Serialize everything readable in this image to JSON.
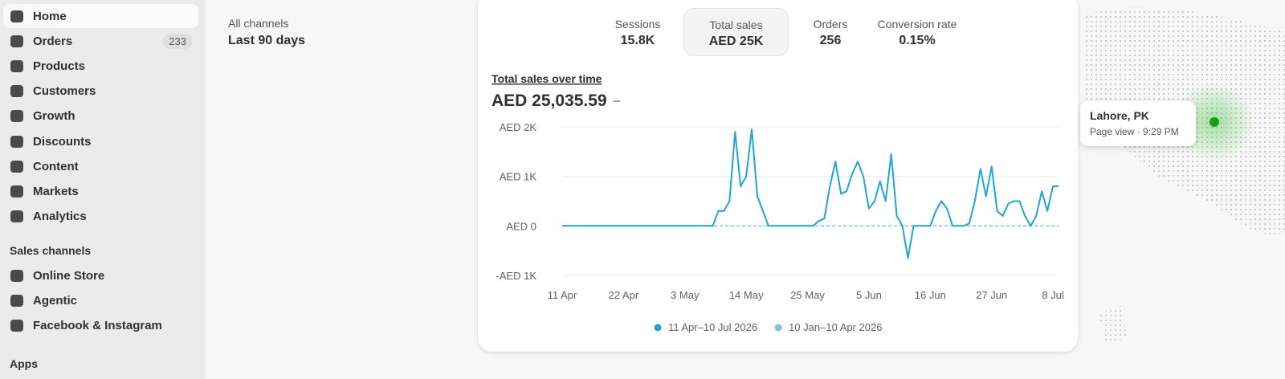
{
  "sidebar": {
    "nav": [
      {
        "label": "Home"
      },
      {
        "label": "Orders",
        "badge": "233"
      },
      {
        "label": "Products"
      },
      {
        "label": "Customers"
      },
      {
        "label": "Growth"
      },
      {
        "label": "Discounts"
      },
      {
        "label": "Content"
      },
      {
        "label": "Markets"
      },
      {
        "label": "Analytics"
      }
    ],
    "sales_channels_heading": "Sales channels",
    "channels": [
      "Online Store",
      "Agentic",
      "Facebook & Instagram"
    ],
    "apps_heading": "Apps"
  },
  "header": {
    "channel": "All channels",
    "range": "Last 90 days"
  },
  "metrics": [
    {
      "label": "Sessions",
      "value": "15.8K"
    },
    {
      "label": "Total sales",
      "value": "AED 25K"
    },
    {
      "label": "Orders",
      "value": "256"
    },
    {
      "label": "Conversion rate",
      "value": "0.15%"
    }
  ],
  "chart_data": {
    "type": "line",
    "title": "Total sales over time",
    "total": "AED 25,035.59",
    "total_change": "–",
    "categories": [
      "11 Apr",
      null,
      null,
      null,
      null,
      null,
      null,
      null,
      null,
      null,
      null,
      "22 Apr",
      null,
      null,
      null,
      null,
      null,
      null,
      null,
      null,
      null,
      null,
      "3 May",
      null,
      null,
      null,
      null,
      null,
      null,
      null,
      null,
      null,
      null,
      "14 May",
      null,
      null,
      null,
      null,
      null,
      null,
      null,
      null,
      null,
      null,
      "25 May",
      null,
      null,
      null,
      null,
      null,
      null,
      null,
      null,
      null,
      null,
      "5 Jun",
      null,
      null,
      null,
      null,
      null,
      null,
      null,
      null,
      null,
      null,
      "16 Jun",
      null,
      null,
      null,
      null,
      null,
      null,
      null,
      null,
      null,
      null,
      "27 Jun",
      null,
      null,
      null,
      null,
      null,
      null,
      null,
      null,
      null,
      null,
      "8 Jul",
      null
    ],
    "series": [
      {
        "name": "11 Apr–10 Jul 2026",
        "color": "#1da6d6",
        "values": [
          0,
          0,
          0,
          0,
          0,
          0,
          0,
          0,
          0,
          0,
          0,
          0,
          0,
          0,
          0,
          0,
          0,
          0,
          0,
          0,
          0,
          0,
          0,
          0,
          0,
          0,
          0,
          0,
          300,
          300,
          500,
          1900,
          800,
          1000,
          1950,
          600,
          300,
          0,
          0,
          0,
          0,
          0,
          0,
          0,
          0,
          0,
          100,
          150,
          800,
          1300,
          650,
          700,
          1050,
          1300,
          1000,
          350,
          500,
          900,
          500,
          1450,
          200,
          0,
          -650,
          0,
          0,
          0,
          0,
          300,
          500,
          350,
          0,
          0,
          0,
          50,
          500,
          1150,
          600,
          1200,
          300,
          200,
          450,
          500,
          500,
          200,
          0,
          200,
          700,
          300,
          800,
          800
        ]
      },
      {
        "name": "10 Jan–10 Apr 2026",
        "color": "#7cc4e6",
        "dashed": true,
        "values": [
          0,
          0,
          0,
          0,
          0,
          0,
          0,
          0,
          0,
          0,
          0,
          0,
          0,
          0,
          0,
          0,
          0,
          0,
          0,
          0,
          0,
          0,
          0,
          0,
          0,
          0,
          0,
          0,
          0,
          0,
          0,
          0,
          0,
          0,
          0,
          0,
          0,
          0,
          0,
          0,
          0,
          0,
          0,
          0,
          0,
          0,
          0,
          0,
          0,
          0,
          0,
          0,
          0,
          0,
          0,
          0,
          0,
          0,
          0,
          0,
          0,
          0,
          0,
          0,
          0,
          0,
          0,
          0,
          0,
          0,
          0,
          0,
          0,
          0,
          0,
          0,
          0,
          0,
          0,
          0,
          0,
          0,
          0,
          0,
          0,
          0,
          0,
          0,
          0,
          0
        ]
      }
    ],
    "ylim": [
      -1000,
      2000
    ],
    "yticks": [
      {
        "value": -1000,
        "label": "-AED 1K"
      },
      {
        "value": 0,
        "label": "AED 0"
      },
      {
        "value": 1000,
        "label": "AED 1K"
      },
      {
        "value": 2000,
        "label": "AED 2K"
      }
    ],
    "grid": true
  },
  "map_tooltip": {
    "location": "Lahore, PK",
    "detail": "Page view · 9:29 PM"
  }
}
